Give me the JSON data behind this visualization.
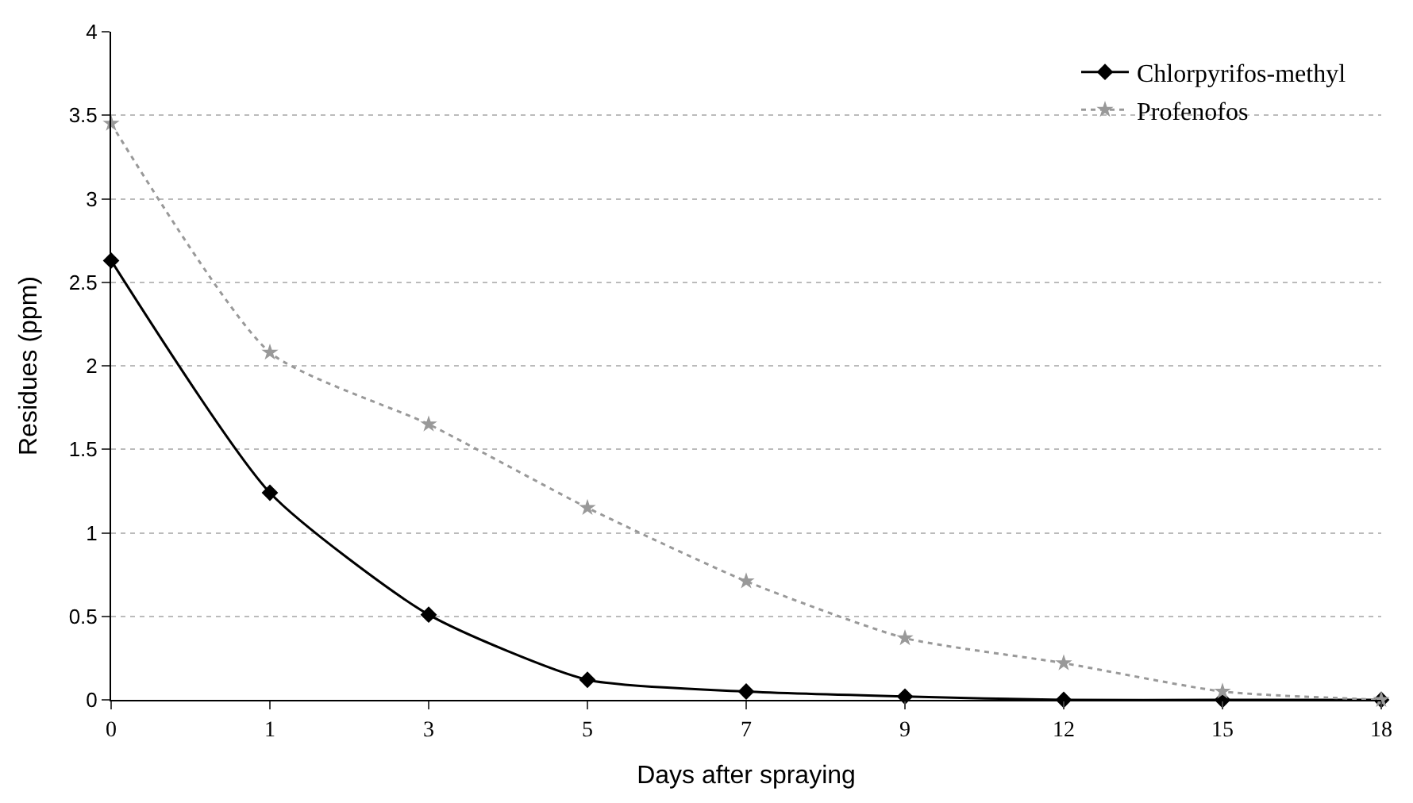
{
  "chart_data": {
    "type": "line",
    "xlabel": "Days after spraying",
    "ylabel": "Residues (ppm)",
    "categories": [
      "0",
      "1",
      "3",
      "5",
      "7",
      "9",
      "12",
      "15",
      "18"
    ],
    "series": [
      {
        "name": "Chlorpyrifos-methyl",
        "color": "#000000",
        "marker": "diamond",
        "line_style": "solid",
        "values": [
          2.63,
          1.24,
          0.51,
          0.12,
          0.05,
          0.02,
          0.0,
          0.0,
          0.0
        ]
      },
      {
        "name": "Profenofos",
        "color": "#999999",
        "marker": "star",
        "line_style": "dotted",
        "values": [
          3.45,
          2.08,
          1.65,
          1.15,
          0.71,
          0.37,
          0.22,
          0.05,
          0.0
        ]
      }
    ],
    "ylim": [
      0,
      4
    ],
    "yticks": [
      0,
      0.5,
      1,
      1.5,
      2,
      2.5,
      3,
      3.5,
      4
    ],
    "grid": "y",
    "legend": "top right"
  }
}
